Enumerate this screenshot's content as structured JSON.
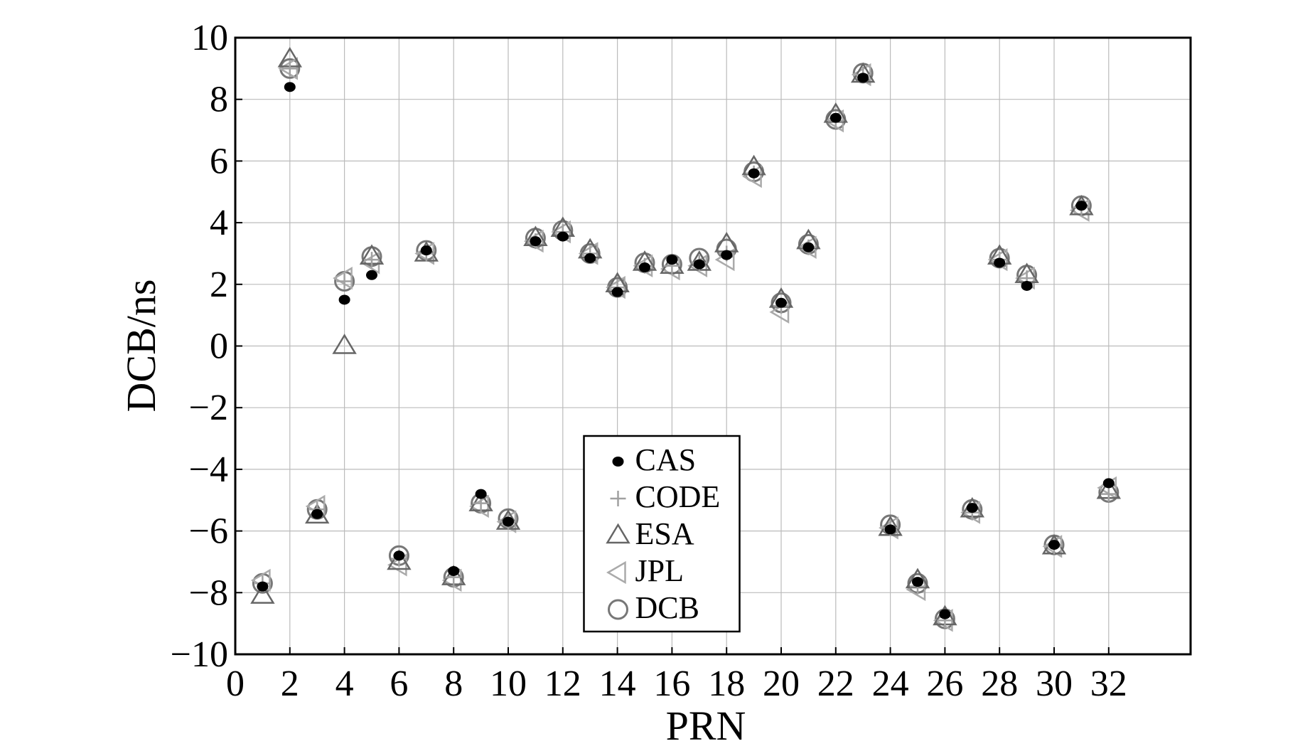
{
  "chart_data": {
    "type": "scatter",
    "x_label": "PRN",
    "y_label": "DCB/ns",
    "x": [
      1,
      2,
      3,
      4,
      5,
      6,
      7,
      8,
      9,
      10,
      11,
      12,
      13,
      14,
      15,
      16,
      17,
      18,
      19,
      20,
      21,
      22,
      23,
      24,
      25,
      26,
      27,
      28,
      29,
      30,
      31,
      32
    ],
    "series": [
      {
        "name": "CAS",
        "color": "#000000",
        "marker": "dot",
        "values": [
          -7.8,
          8.4,
          -5.45,
          1.5,
          2.3,
          -6.8,
          3.1,
          -7.3,
          -4.8,
          -5.7,
          3.4,
          3.55,
          2.85,
          1.75,
          2.55,
          2.8,
          2.65,
          2.95,
          5.6,
          1.4,
          3.2,
          7.4,
          8.7,
          -5.95,
          -7.65,
          -8.7,
          -5.25,
          2.7,
          1.95,
          -6.45,
          4.55,
          -4.45
        ]
      },
      {
        "name": "CODE",
        "color": "#a0a0a0",
        "marker": "plus",
        "values": [
          -7.7,
          9.0,
          -5.3,
          2.1,
          2.8,
          -6.9,
          3.0,
          -7.5,
          -5.1,
          -5.7,
          3.4,
          3.7,
          3.0,
          1.9,
          2.6,
          2.6,
          2.7,
          3.0,
          5.6,
          1.3,
          3.2,
          7.3,
          8.8,
          -5.9,
          -7.8,
          -8.9,
          -5.4,
          2.8,
          2.2,
          -6.5,
          4.5,
          -4.8
        ]
      },
      {
        "name": "ESA",
        "color": "#666666",
        "marker": "triangle-up",
        "values": [
          -8.1,
          9.3,
          -5.5,
          0,
          2.9,
          -7.0,
          3.0,
          -7.5,
          -5.1,
          -5.7,
          3.5,
          3.8,
          3.1,
          2.0,
          2.7,
          2.6,
          2.7,
          3.3,
          5.8,
          1.5,
          3.4,
          7.5,
          8.8,
          -5.9,
          -7.6,
          -8.8,
          -5.3,
          2.9,
          2.3,
          -6.5,
          4.5,
          -4.7
        ]
      },
      {
        "name": "JPL",
        "color": "#aaaaaa",
        "marker": "triangle-left",
        "values": [
          -7.6,
          9.0,
          -5.2,
          2.2,
          2.7,
          -7.1,
          3.0,
          -7.6,
          -5.2,
          -5.7,
          3.4,
          3.7,
          3.0,
          1.9,
          2.6,
          2.5,
          2.6,
          2.8,
          5.5,
          1.1,
          3.2,
          7.3,
          8.8,
          -5.9,
          -7.9,
          -8.9,
          -5.4,
          2.8,
          2.2,
          -6.5,
          4.4,
          -4.6
        ]
      },
      {
        "name": "DCB",
        "color": "#777777",
        "marker": "circle",
        "values": [
          -7.7,
          9.0,
          -5.3,
          2.1,
          2.9,
          -6.8,
          3.1,
          -7.5,
          -5.1,
          -5.6,
          3.5,
          3.75,
          3.0,
          1.9,
          2.7,
          2.65,
          2.85,
          3.15,
          5.65,
          1.4,
          3.3,
          7.35,
          8.85,
          -5.8,
          -7.7,
          -8.85,
          -5.3,
          2.85,
          2.3,
          -6.45,
          4.55,
          -4.75
        ]
      }
    ],
    "xlim": [
      0,
      35
    ],
    "ylim": [
      -10,
      10
    ],
    "xticks": [
      0,
      2,
      4,
      6,
      8,
      10,
      12,
      14,
      16,
      18,
      20,
      22,
      24,
      26,
      28,
      30,
      32
    ],
    "yticks": [
      {
        "value": -10,
        "label": "−10"
      },
      {
        "value": -8,
        "label": "−8"
      },
      {
        "value": -6,
        "label": "−6"
      },
      {
        "value": -4,
        "label": "−4"
      },
      {
        "value": -2,
        "label": "−2"
      },
      0,
      2,
      4,
      6,
      8,
      10
    ],
    "grid": true,
    "legend": "lower center"
  }
}
